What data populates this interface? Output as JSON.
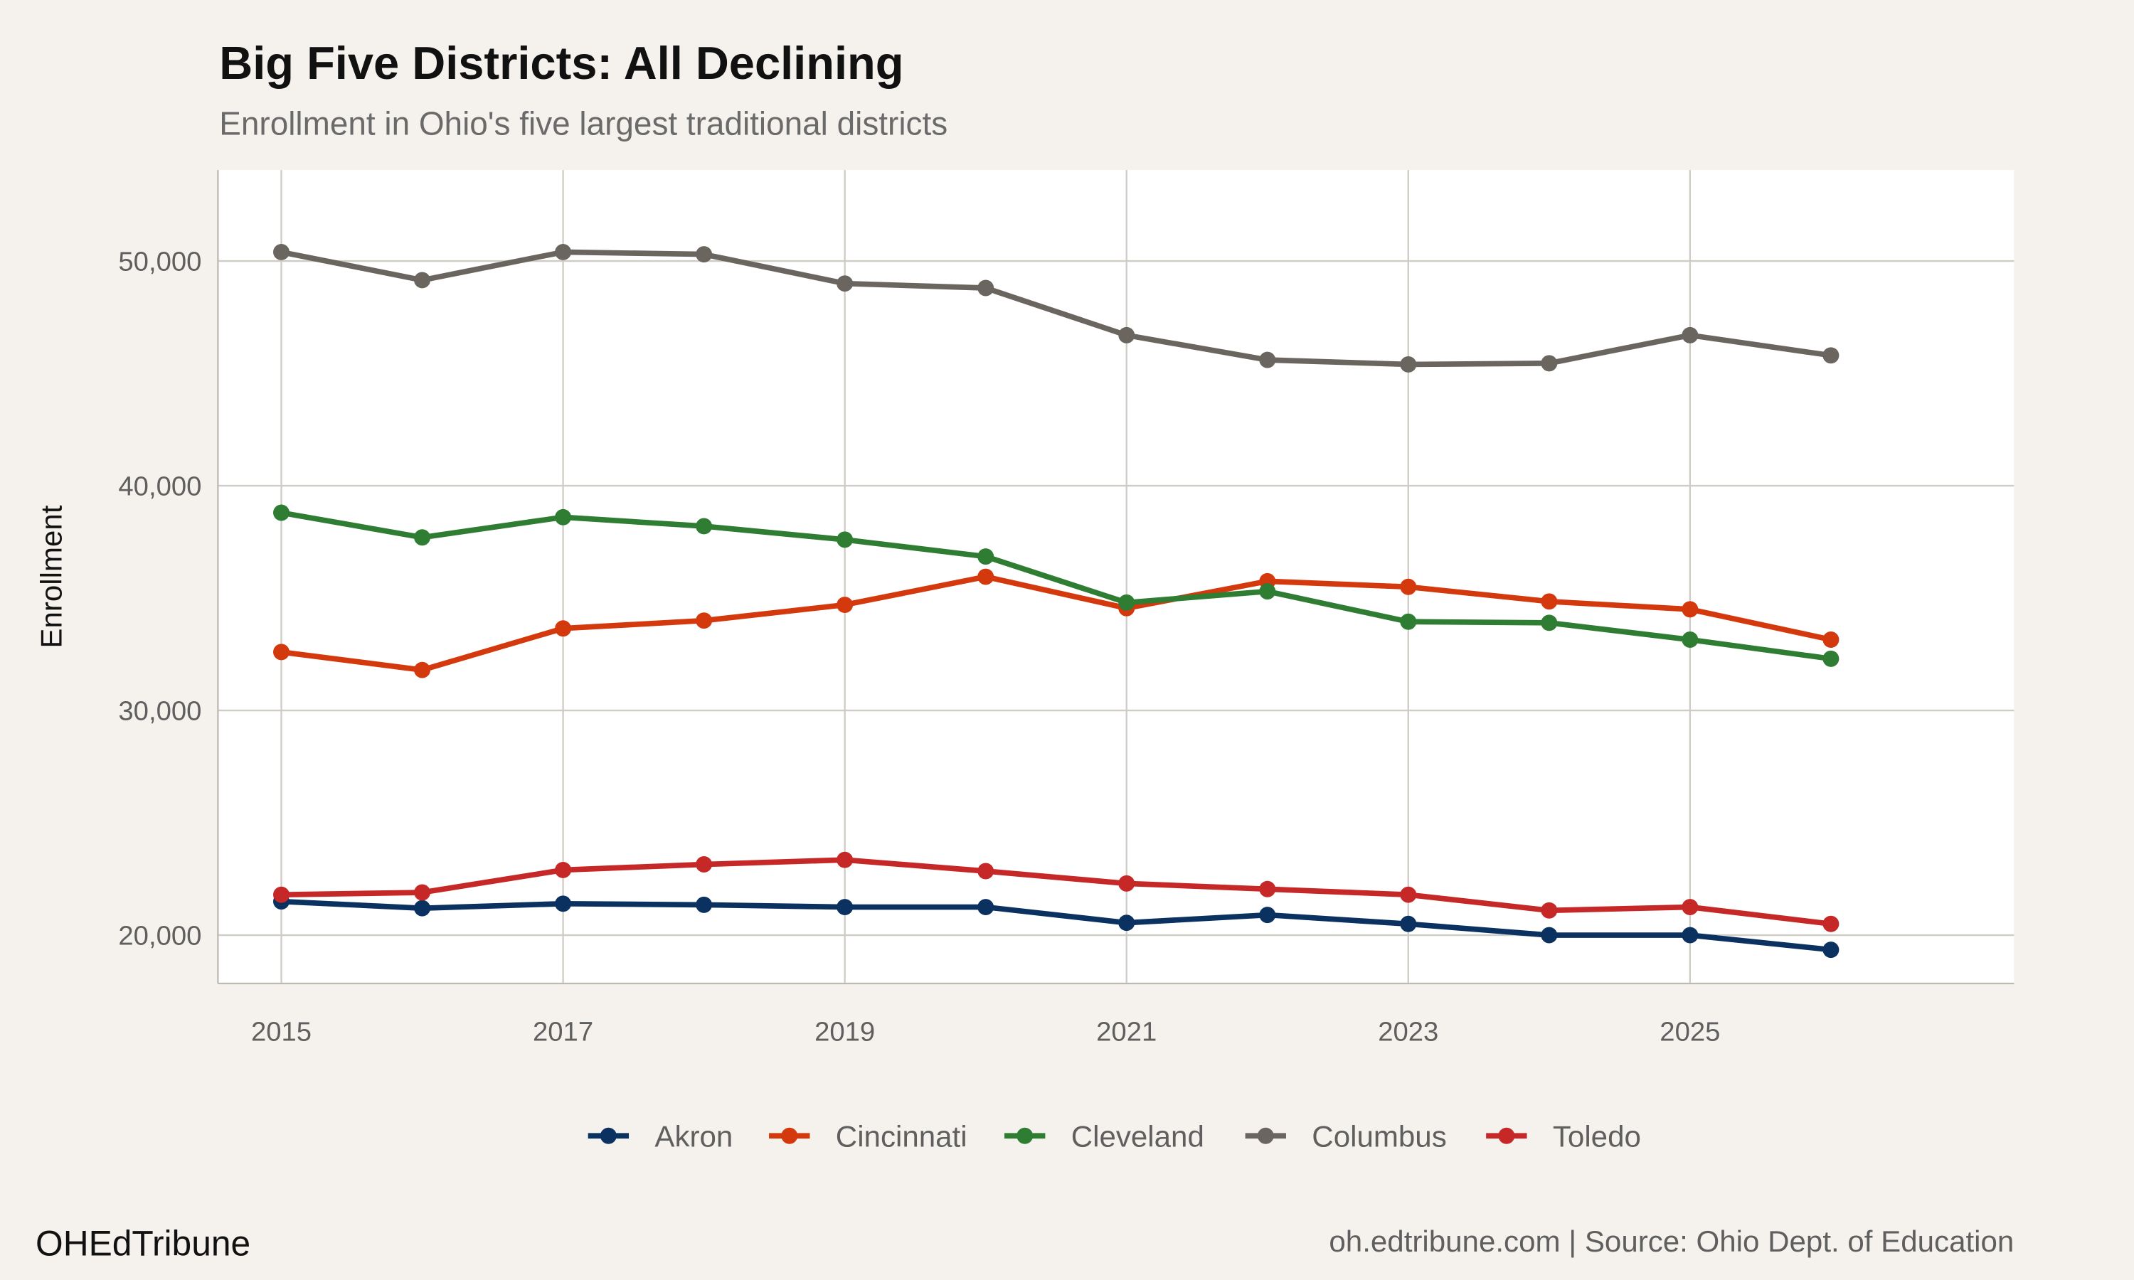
{
  "header": {
    "title": "Big Five Districts: All Declining",
    "subtitle": "Enrollment in Ohio's five largest traditional districts"
  },
  "footer": {
    "brand": "OHEdTribune",
    "source": "oh.edtribune.com | Source: Ohio Dept. of Education"
  },
  "colors": {
    "background": "#f5f2ed",
    "panel": "#ffffff",
    "grid": "#cfcbc5"
  },
  "chart_data": {
    "type": "line",
    "title": "Big Five Districts: All Declining",
    "subtitle": "Enrollment in Ohio's five largest traditional districts",
    "xlabel": "",
    "ylabel": "Enrollment",
    "x": [
      2015,
      2016,
      2017,
      2018,
      2019,
      2020,
      2021,
      2022,
      2023,
      2024,
      2025,
      2026
    ],
    "xticks": [
      2015,
      2017,
      2019,
      2021,
      2023,
      2025
    ],
    "xtick_labels": [
      "2015",
      "2017",
      "2019",
      "2021",
      "2023",
      "2025"
    ],
    "yticks": [
      20000,
      30000,
      40000,
      50000
    ],
    "ytick_labels": [
      "20,000",
      "30,000",
      "40,000",
      "50,000"
    ],
    "xlim": [
      2014.55,
      2027.3
    ],
    "ylim": [
      17850,
      54050
    ],
    "grid": true,
    "legend_position": "bottom",
    "series": [
      {
        "name": "Akron",
        "color": "#0b3160",
        "values": [
          21500,
          21200,
          21400,
          21350,
          21250,
          21250,
          20550,
          20900,
          20500,
          20000,
          20000,
          19350
        ]
      },
      {
        "name": "Cincinnati",
        "color": "#d4380d",
        "values": [
          32600,
          31800,
          33650,
          34000,
          34700,
          35950,
          34550,
          35750,
          35500,
          34850,
          34500,
          33150
        ]
      },
      {
        "name": "Cleveland",
        "color": "#2e7d32",
        "values": [
          38800,
          37700,
          38600,
          38200,
          37600,
          36850,
          34800,
          35300,
          33950,
          33900,
          33150,
          32300
        ]
      },
      {
        "name": "Columbus",
        "color": "#6b6560",
        "values": [
          50400,
          49150,
          50400,
          50300,
          49000,
          48800,
          46700,
          45600,
          45400,
          45450,
          46700,
          45800
        ]
      },
      {
        "name": "Toledo",
        "color": "#c62828",
        "values": [
          21800,
          21900,
          22900,
          23150,
          23350,
          22850,
          22300,
          22050,
          21800,
          21100,
          21250,
          20500
        ]
      }
    ]
  }
}
